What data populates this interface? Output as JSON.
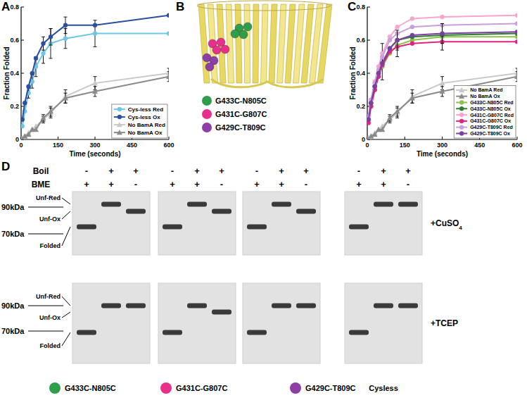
{
  "chart_data": [
    {
      "type": "line",
      "title": "A",
      "x_label": "Time (seconds)",
      "y_label": "Fraction Folded",
      "x": [
        5,
        15,
        30,
        45,
        60,
        90,
        120,
        180,
        300,
        600
      ],
      "xlim": [
        0,
        600
      ],
      "ylim": [
        0,
        0.8
      ],
      "xticks": [
        0,
        150,
        300,
        450,
        600
      ],
      "yticks": [
        0,
        0.2,
        0.4,
        0.6,
        0.8
      ],
      "grid": false,
      "legend": "lower right",
      "series": [
        {
          "name": "Cys-less Red",
          "color": "#6ec6e6",
          "marker": "circle",
          "line_style": "solid",
          "values": [
            0.08,
            0.17,
            0.28,
            0.35,
            0.44,
            0.52,
            0.58,
            0.61,
            0.64,
            0.64
          ],
          "errors": [
            null,
            null,
            0.03,
            0.04,
            0.06,
            0.06,
            0.09,
            0.06,
            0.08,
            null
          ]
        },
        {
          "name": "Cys-less Ox",
          "color": "#2a4f9e",
          "marker": "circle",
          "line_style": "solid",
          "values": [
            0.12,
            0.22,
            0.32,
            0.4,
            0.49,
            0.58,
            0.62,
            0.69,
            0.69,
            0.75
          ],
          "errors": [
            null,
            null,
            null,
            null,
            null,
            0.04,
            0.05,
            0.05,
            null,
            null
          ]
        },
        {
          "name": "No BamA Red",
          "color": "#c8c8c8",
          "marker": "triangle",
          "line_style": "solid",
          "values": [
            0.01,
            0.02,
            0.04,
            0.06,
            0.08,
            0.12,
            0.16,
            0.26,
            0.34,
            0.4
          ],
          "errors": [
            null,
            null,
            null,
            null,
            null,
            0.02,
            0.03,
            0.04,
            0.04,
            0.03
          ]
        },
        {
          "name": "No BamA Ox",
          "color": "#8a8a8a",
          "marker": "triangle",
          "line_style": "solid",
          "values": [
            0.0,
            0.02,
            0.03,
            0.06,
            0.06,
            0.13,
            0.17,
            0.25,
            0.29,
            0.38
          ],
          "errors": [
            null,
            null,
            null,
            null,
            null,
            0.02,
            0.03,
            0.03,
            0.03,
            0.03
          ]
        }
      ]
    },
    {
      "type": "line",
      "title": "C",
      "x_label": "Time (seconds)",
      "y_label": "Fraction Folded",
      "x": [
        5,
        15,
        30,
        45,
        60,
        90,
        120,
        180,
        300,
        600
      ],
      "xlim": [
        0,
        600
      ],
      "ylim": [
        0,
        0.8
      ],
      "xticks": [
        0,
        150,
        300,
        450,
        600
      ],
      "yticks": [
        0,
        0.2,
        0.4,
        0.6,
        0.8
      ],
      "grid": false,
      "legend": "lower right",
      "series": [
        {
          "name": "No BamA Red",
          "color": "#c8c8c8",
          "marker": "triangle",
          "line_style": "solid",
          "values": [
            0.01,
            0.02,
            0.04,
            0.06,
            0.08,
            0.12,
            0.16,
            0.26,
            0.34,
            0.4
          ],
          "errors": [
            null,
            null,
            null,
            null,
            null,
            0.02,
            0.03,
            0.04,
            0.04,
            0.03
          ]
        },
        {
          "name": "No BamA Ox",
          "color": "#8a8a8a",
          "marker": "triangle",
          "line_style": "solid",
          "values": [
            0.0,
            0.02,
            0.03,
            0.06,
            0.06,
            0.13,
            0.17,
            0.25,
            0.29,
            0.38
          ],
          "errors": [
            null,
            null,
            null,
            null,
            null,
            0.02,
            0.03,
            0.03,
            0.03,
            0.03
          ]
        },
        {
          "name": "G433C-N805C Red",
          "color": "#8bc34a",
          "marker": "circle",
          "line_style": "solid",
          "values": [
            0.12,
            0.2,
            0.3,
            0.38,
            0.44,
            0.52,
            0.57,
            0.6,
            0.62,
            0.62
          ],
          "errors": [
            null,
            null,
            null,
            null,
            0.08,
            null,
            0.07,
            null,
            0.08,
            null
          ]
        },
        {
          "name": "G433C-N805C Ox",
          "color": "#2e7d32",
          "marker": "circle",
          "line_style": "solid",
          "values": [
            0.12,
            0.22,
            0.32,
            0.4,
            0.46,
            0.55,
            0.6,
            0.62,
            0.63,
            0.64
          ]
        },
        {
          "name": "G431C-G807C Red",
          "color": "#f8a5cf",
          "marker": "circle",
          "line_style": "solid",
          "values": [
            0.14,
            0.24,
            0.35,
            0.44,
            0.52,
            0.62,
            0.68,
            0.73,
            0.74,
            0.75
          ],
          "errors": [
            null,
            null,
            null,
            null,
            0.06,
            null,
            null,
            null,
            null,
            null
          ]
        },
        {
          "name": "G431C-G807C Ox",
          "color": "#e0247f",
          "marker": "circle",
          "line_style": "solid",
          "values": [
            0.1,
            0.2,
            0.3,
            0.38,
            0.45,
            0.53,
            0.56,
            0.58,
            0.59,
            0.59
          ]
        },
        {
          "name": "G429C-T809C Red",
          "color": "#c9a0dc",
          "marker": "circle",
          "line_style": "solid",
          "values": [
            0.14,
            0.24,
            0.34,
            0.42,
            0.5,
            0.6,
            0.64,
            0.68,
            0.69,
            0.7
          ]
        },
        {
          "name": "G429C-T809C Ox",
          "color": "#7b3fa0",
          "marker": "circle",
          "line_style": "solid",
          "values": [
            0.12,
            0.22,
            0.32,
            0.4,
            0.46,
            0.55,
            0.6,
            0.63,
            0.64,
            0.65
          ],
          "errors": [
            null,
            null,
            null,
            null,
            null,
            null,
            0.06,
            null,
            0.06,
            null
          ]
        }
      ]
    }
  ],
  "panel_b": {
    "title": "B",
    "legend": [
      {
        "label": "G433C-N805C",
        "color": "#2e9e4a"
      },
      {
        "label": "G431C-G807C",
        "color": "#e8308a"
      },
      {
        "label": "G429C-T809C",
        "color": "#8e3fa6"
      }
    ]
  },
  "panel_d": {
    "title": "D",
    "row_labels": [
      "Boil",
      "BME"
    ],
    "band_labels": [
      "Unf-Red",
      "Unf-Ox",
      "Folded"
    ],
    "marker_labels": [
      "90kDa",
      "70kDa"
    ],
    "groups": [
      {
        "label": "G433C-N805C",
        "color": "#2e9e4a",
        "boil": [
          "-",
          "+",
          "+"
        ],
        "bme": [
          "+",
          "+",
          "-"
        ]
      },
      {
        "label": "G431C-G807C",
        "color": "#e8308a",
        "boil": [
          "-",
          "+",
          "+"
        ],
        "bme": [
          "+",
          "+",
          "-"
        ]
      },
      {
        "label": "G429C-T809C",
        "color": "#8e3fa6",
        "boil": [
          "-",
          "+",
          "+"
        ],
        "bme": [
          "+",
          "+",
          "-"
        ]
      },
      {
        "label": "Cysless",
        "boil": [
          "-",
          "+",
          "+"
        ],
        "bme": [
          "+",
          "+",
          "-"
        ]
      }
    ],
    "gels": [
      {
        "condition": "+CuSO4",
        "bands": [
          [
            "Folded",
            "Unf-Red",
            "Unf-Ox"
          ],
          [
            "Folded",
            "Unf-Red",
            "Unf-Ox"
          ],
          [
            "Folded",
            "Unf-Red",
            "Unf-Ox"
          ],
          [
            "Folded",
            "Unf-Red",
            "Unf-Red"
          ]
        ]
      },
      {
        "condition": "+TCEP",
        "bands": [
          [
            "Folded",
            "Unf-Red",
            "Unf-Red"
          ],
          [
            "Folded",
            "Unf-Red",
            "Unf-Ox"
          ],
          [
            "Folded",
            "Unf-Red",
            "Unf-Red"
          ],
          [
            "Folded",
            "Unf-Red",
            "Unf-Red"
          ]
        ]
      }
    ]
  }
}
